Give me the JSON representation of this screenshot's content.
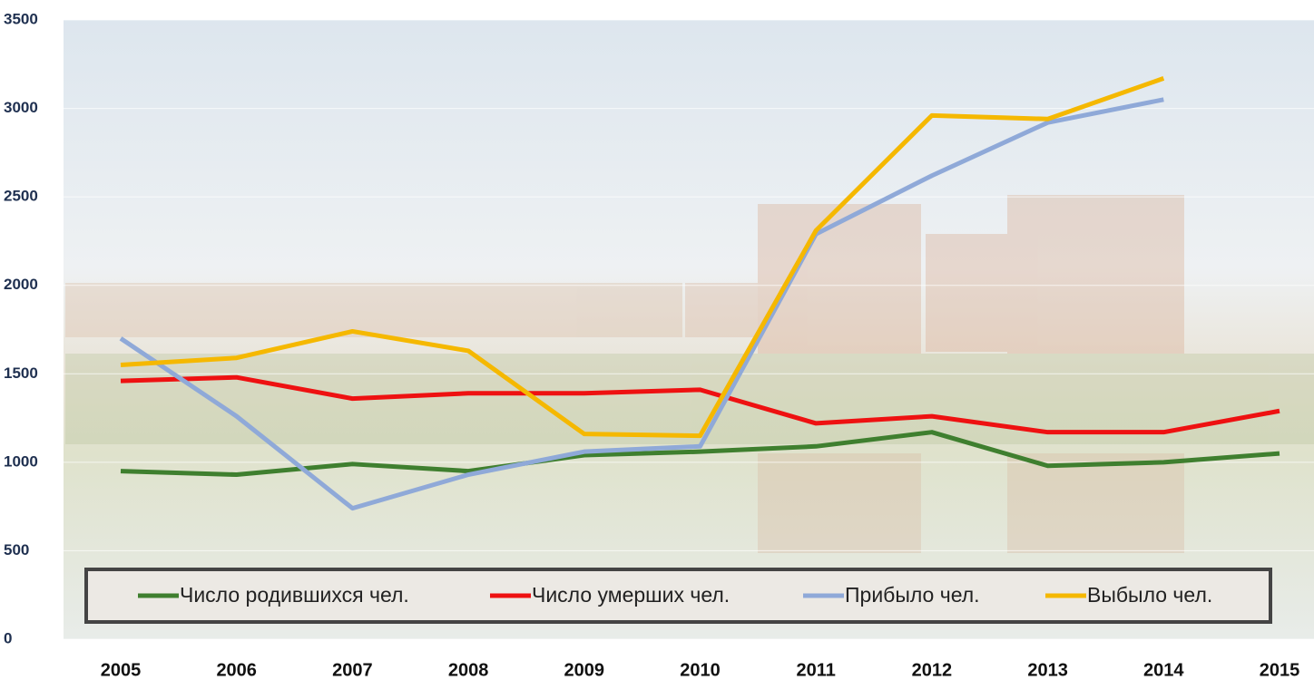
{
  "chart_data": {
    "type": "line",
    "categories": [
      "2005",
      "2006",
      "2007",
      "2008",
      "2009",
      "2010",
      "2011",
      "2012",
      "2013",
      "2014",
      "2015"
    ],
    "series": [
      {
        "name": "Число родившихся чел.",
        "color": "#3f7f2f",
        "values": [
          950,
          930,
          990,
          950,
          1040,
          1060,
          1090,
          1170,
          980,
          1000,
          1050
        ]
      },
      {
        "name": "Число умерших чел.",
        "color": "#ee1111",
        "values": [
          1460,
          1480,
          1360,
          1390,
          1390,
          1410,
          1220,
          1260,
          1170,
          1170,
          1290
        ]
      },
      {
        "name": "Прибыло чел.",
        "color": "#8fa9d8",
        "values": [
          1700,
          1260,
          740,
          930,
          1060,
          1090,
          2290,
          2620,
          2920,
          3050,
          null
        ]
      },
      {
        "name": "Выбыло чел.",
        "color": "#f5b800",
        "values": [
          1550,
          1590,
          1740,
          1630,
          1160,
          1150,
          2310,
          2960,
          2940,
          3170,
          null
        ]
      }
    ],
    "ylim": [
      0,
      3500
    ],
    "yticks": [
      0,
      500,
      1000,
      1500,
      2000,
      2500,
      3000,
      3500
    ],
    "grid": true
  }
}
